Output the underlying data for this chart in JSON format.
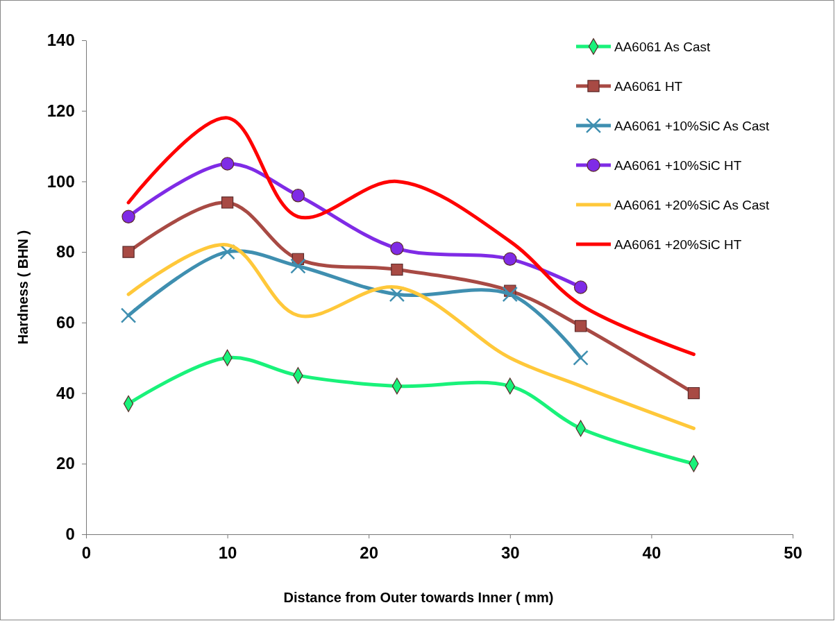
{
  "chart_data": {
    "type": "line",
    "xlabel": "Distance from Outer towards Inner  ( mm)",
    "ylabel": "Hardness  ( BHN )",
    "xlim": [
      0,
      50
    ],
    "xticks": [
      0,
      10,
      20,
      30,
      40,
      50
    ],
    "ylim": [
      0,
      140
    ],
    "yticks": [
      0,
      20,
      40,
      60,
      80,
      100,
      120,
      140
    ],
    "grid": false,
    "legend": "top right",
    "line_style": "solid",
    "series": [
      {
        "name": "AA6061 As Cast",
        "color": "#19f27a",
        "marker": "diamond",
        "x": [
          3,
          10,
          15,
          22,
          30,
          35,
          43
        ],
        "values": [
          37,
          50,
          45,
          42,
          42,
          30,
          20
        ]
      },
      {
        "name": "AA6061 HT",
        "color": "#a84a44",
        "marker": "square",
        "x": [
          3,
          10,
          15,
          22,
          30,
          35,
          43
        ],
        "values": [
          80,
          94,
          78,
          75,
          69,
          59,
          40
        ]
      },
      {
        "name": "AA6061 +10%SiC As Cast",
        "color": "#3f8fb0",
        "marker": "cross",
        "x": [
          3,
          10,
          15,
          22,
          30,
          35
        ],
        "values": [
          62,
          80,
          76,
          68,
          68,
          50
        ]
      },
      {
        "name": "AA6061 +10%SiC HT",
        "color": "#7f2be6",
        "marker": "circle",
        "x": [
          3,
          10,
          15,
          22,
          30,
          35
        ],
        "values": [
          90,
          105,
          96,
          81,
          78,
          70
        ]
      },
      {
        "name": "AA6061 +20%SiC As Cast",
        "color": "#ffc83a",
        "marker": "none",
        "x": [
          3,
          10,
          15,
          22,
          30,
          35,
          43
        ],
        "values": [
          68,
          82,
          62,
          70,
          50,
          42,
          30
        ]
      },
      {
        "name": "AA6061 +20%SiC HT",
        "color": "#ff0000",
        "marker": "none",
        "x": [
          3,
          10,
          15,
          22,
          30,
          35,
          43
        ],
        "values": [
          94,
          118,
          90,
          100,
          83,
          65,
          51
        ]
      }
    ]
  }
}
